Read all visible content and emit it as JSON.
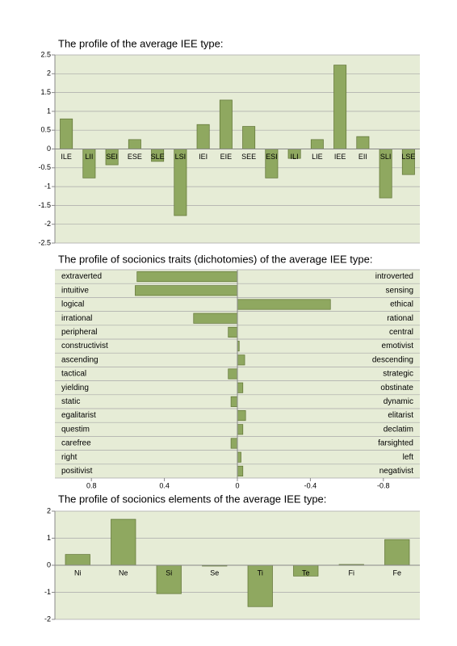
{
  "chart_data": [
    {
      "type": "bar",
      "title": "The profile of the average IEE type:",
      "categories": [
        "ILE",
        "LII",
        "SEI",
        "ESE",
        "SLE",
        "LSI",
        "IEI",
        "EIE",
        "SEE",
        "ESI",
        "ILI",
        "LIE",
        "IEE",
        "EII",
        "SLI",
        "LSE"
      ],
      "values": [
        0.8,
        -0.77,
        -0.42,
        0.25,
        -0.33,
        -1.77,
        0.65,
        1.3,
        0.6,
        -0.77,
        -0.25,
        0.25,
        2.23,
        0.33,
        -1.3,
        -0.68
      ],
      "color": "#8fa860",
      "ylim": [
        -2.5,
        2.5
      ],
      "yticks": [
        -2.5,
        -2,
        -1.5,
        -1,
        -0.5,
        0,
        0.5,
        1,
        1.5,
        2,
        2.5
      ],
      "grid": true
    },
    {
      "type": "hbar",
      "title": "The profile of socionics traits (dichotomies) of the average IEE type:",
      "categories": [
        "extraverted",
        "intuitive",
        "logical",
        "irrational",
        "peripheral",
        "constructivist",
        "ascending",
        "tactical",
        "yielding",
        "static",
        "egalitarist",
        "questim",
        "carefree",
        "right",
        "positivist"
      ],
      "opposites": [
        "introverted",
        "sensing",
        "ethical",
        "rational",
        "central",
        "emotivist",
        "descending",
        "strategic",
        "obstinate",
        "dynamic",
        "elitarist",
        "declatim",
        "farsighted",
        "left",
        "negativist"
      ],
      "values": [
        0.55,
        0.56,
        -0.51,
        0.24,
        0.05,
        -0.01,
        -0.04,
        0.05,
        -0.03,
        0.035,
        -0.045,
        -0.03,
        0.035,
        -0.02,
        -0.03
      ],
      "color": "#8fa860",
      "xlim": [
        1,
        -1
      ],
      "xticks": [
        0.8,
        0.4,
        0,
        -0.4,
        -0.8
      ],
      "grid": true
    },
    {
      "type": "bar",
      "title": "The profile of socionics elements of the average IEE type:",
      "categories": [
        "Ni",
        "Ne",
        "Si",
        "Se",
        "Ti",
        "Te",
        "Fi",
        "Fe"
      ],
      "values": [
        0.4,
        1.7,
        -1.05,
        -0.03,
        -1.53,
        -0.4,
        0.03,
        0.95
      ],
      "color": "#8fa860",
      "ylim": [
        -2,
        2
      ],
      "yticks": [
        -2,
        -1,
        0,
        1,
        2
      ],
      "grid": true
    }
  ]
}
